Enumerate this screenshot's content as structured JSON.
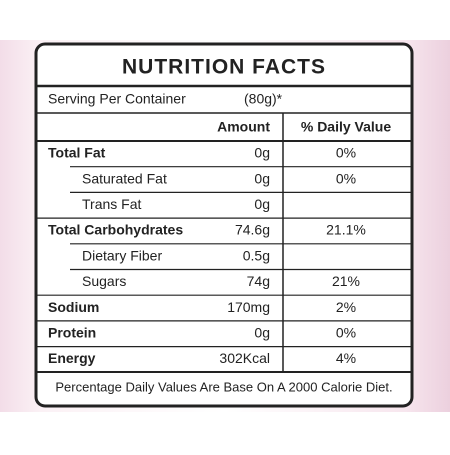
{
  "title": "NUTRITION FACTS",
  "serving": {
    "label": "Serving Per Container",
    "value": "(80g)*"
  },
  "table": {
    "headers": [
      "Amount",
      "% Daily Value"
    ],
    "rows": [
      {
        "name": "Total Fat",
        "amount": "0g",
        "daily_value": "0%",
        "bold": true
      },
      {
        "name": "Saturated Fat",
        "amount": "0g",
        "daily_value": "0%",
        "indent": true
      },
      {
        "name": "Trans Fat",
        "amount": "0g",
        "indent": true
      },
      {
        "name": "Total Carbohydrates",
        "amount": "74.6g",
        "daily_value": "21.1%",
        "bold": true
      },
      {
        "name": "Dietary Fiber",
        "amount": "0.5g",
        "indent": true
      },
      {
        "name": "Sugars",
        "amount": "74g",
        "daily_value": "21%",
        "indent": true
      },
      {
        "name": "Sodium",
        "amount": "170mg",
        "daily_value": "2%",
        "bold": true
      },
      {
        "name": "Protein",
        "amount": "0g",
        "daily_value": "0%",
        "bold": true
      },
      {
        "name": "Energy",
        "amount": "302Kcal",
        "daily_value": "4%",
        "bold": true
      }
    ]
  },
  "footer": "Percentage Daily Values Are Base On A 2000 Calorie Diet."
}
